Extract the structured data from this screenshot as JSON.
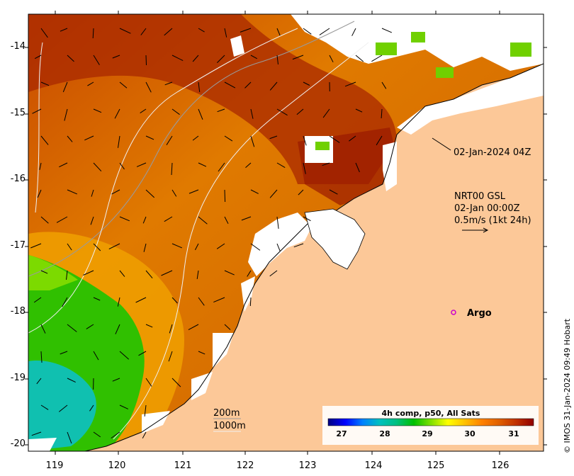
{
  "map": {
    "lon_range": [
      118.6,
      126.7
    ],
    "lat_range": [
      -20.1,
      -13.5
    ],
    "x_ticks": [
      "119",
      "120",
      "121",
      "122",
      "123",
      "124",
      "125",
      "126"
    ],
    "y_ticks": [
      "-14",
      "-15",
      "-16",
      "-17",
      "-18",
      "-19",
      "-20"
    ],
    "colors": {
      "land": "#fcc898",
      "no_data": "#ffffff",
      "frame": "#000000"
    }
  },
  "annotations": {
    "image_time": "02-Jan-2024 04Z",
    "current_source": "NRT00 GSL",
    "current_time": "02-Jan 00:00Z",
    "current_scale": "0.5m/s (1kt 24h)",
    "argo_label": "Argo",
    "contour_200": "200m",
    "contour_1000": "1000m",
    "credit": "© IMOS 31-Jan-2024 09:49 Hobart"
  },
  "colorbar": {
    "title": "4h comp, p50, All Sats",
    "ticks": [
      "27",
      "28",
      "29",
      "30",
      "31"
    ],
    "range": [
      26.6,
      31.6
    ],
    "stops": [
      "#000080",
      "#0000ff",
      "#0080ff",
      "#00c0c0",
      "#00c080",
      "#00c000",
      "#80e000",
      "#ffff00",
      "#ffc000",
      "#ff8000",
      "#e06000",
      "#c03000",
      "#900000"
    ]
  }
}
